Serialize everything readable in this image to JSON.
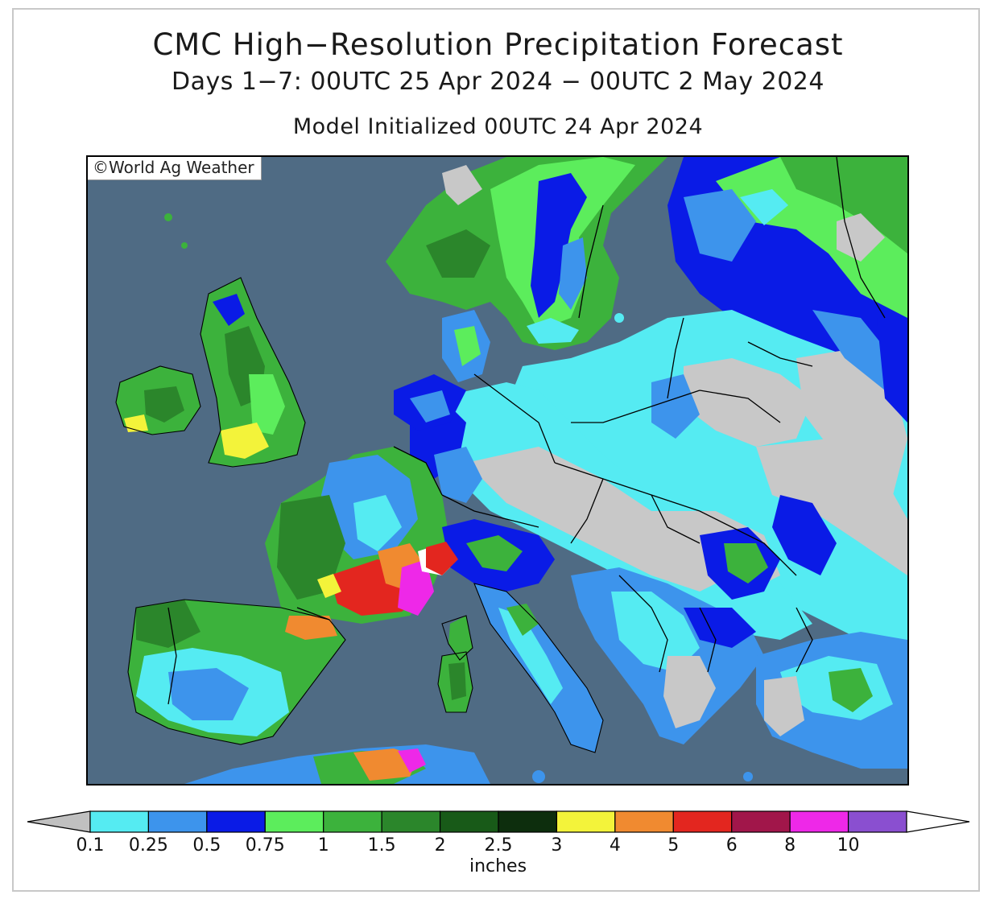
{
  "header": {
    "title": "CMC High−Resolution Precipitation Forecast",
    "subtitle": "Days 1−7: 00UTC 25 Apr 2024 − 00UTC 2 May 2024",
    "init": "Model Initialized 00UTC 24 Apr 2024"
  },
  "map": {
    "credit": "©World Ag Weather",
    "sea_color": "#4f6b84",
    "dry_color": "#c8c8c8"
  },
  "legend": {
    "units": "inches",
    "ticks": [
      "0.1",
      "0.25",
      "0.5",
      "0.75",
      "1",
      "1.5",
      "2",
      "2.5",
      "3",
      "4",
      "5",
      "6",
      "8",
      "10"
    ],
    "under_color": "#c0c0c0",
    "over_color": "#ffffff",
    "colors": [
      "#55ebf2",
      "#3d94ec",
      "#0a1be6",
      "#5ced5c",
      "#3cb23c",
      "#2b862b",
      "#185a18",
      "#0d2e0d",
      "#f3f33a",
      "#f08a30",
      "#e3261f",
      "#a1164a",
      "#ee28e8",
      "#8a4fd0"
    ]
  }
}
